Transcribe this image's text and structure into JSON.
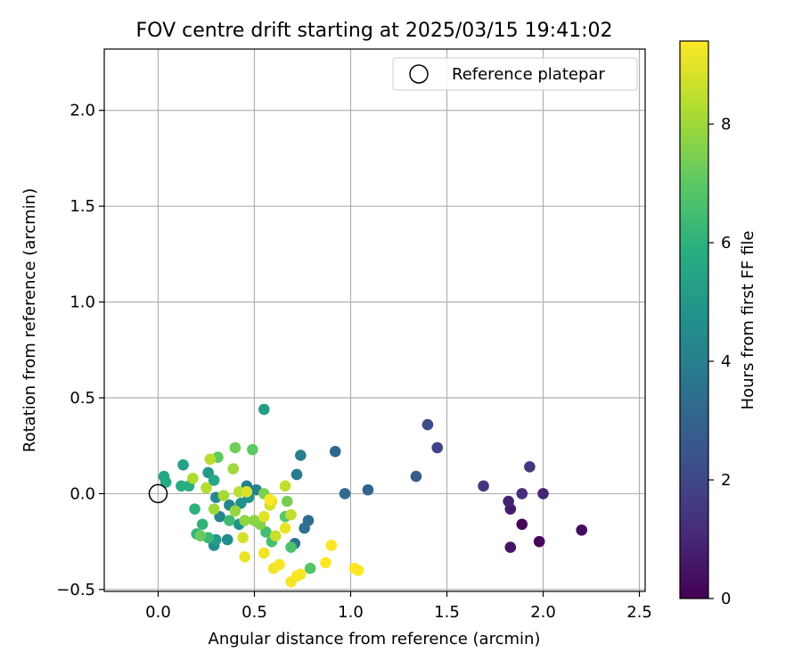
{
  "chart_data": {
    "type": "scatter",
    "title": "FOV centre drift starting at 2025/03/15 19:41:02",
    "xlabel": "Angular distance from reference (arcmin)",
    "ylabel": "Rotation from reference (arcmin)",
    "xlim": [
      -0.28,
      2.53
    ],
    "ylim": [
      -0.51,
      2.32
    ],
    "xticks": [
      0.0,
      0.5,
      1.0,
      1.5,
      2.0,
      2.5
    ],
    "xtick_labels": [
      "0.0",
      "0.5",
      "1.0",
      "1.5",
      "2.0",
      "2.5"
    ],
    "yticks": [
      -0.5,
      0.0,
      0.5,
      1.0,
      1.5,
      2.0
    ],
    "ytick_labels": [
      "−0.5",
      "0.0",
      "0.5",
      "1.0",
      "1.5",
      "2.0"
    ],
    "grid": true,
    "legend": {
      "placement": "top-right",
      "entries": [
        {
          "label": "Reference platepar",
          "marker": "open-circle"
        }
      ]
    },
    "colorbar": {
      "label": "Hours from first FF file",
      "colormap": "viridis",
      "range": [
        0,
        9.4
      ],
      "ticks": [
        0,
        2,
        4,
        6,
        8
      ],
      "tick_labels": [
        "0",
        "2",
        "4",
        "6",
        "8"
      ]
    },
    "reference_point": {
      "x": 0.0,
      "y": 0.0
    },
    "points": [
      {
        "x": 1.89,
        "y": -0.16,
        "c": 0.1
      },
      {
        "x": 1.98,
        "y": -0.25,
        "c": 0.2
      },
      {
        "x": 2.2,
        "y": -0.19,
        "c": 0.3
      },
      {
        "x": 1.83,
        "y": -0.28,
        "c": 0.5
      },
      {
        "x": 1.83,
        "y": -0.08,
        "c": 0.7
      },
      {
        "x": 1.82,
        "y": -0.04,
        "c": 0.9
      },
      {
        "x": 2.0,
        "y": 0.0,
        "c": 1.0
      },
      {
        "x": 1.89,
        "y": 0.0,
        "c": 1.2
      },
      {
        "x": 1.69,
        "y": 0.04,
        "c": 1.4
      },
      {
        "x": 1.93,
        "y": 0.14,
        "c": 1.5
      },
      {
        "x": 1.45,
        "y": 0.24,
        "c": 1.9
      },
      {
        "x": 1.4,
        "y": 0.36,
        "c": 2.2
      },
      {
        "x": 1.34,
        "y": 0.09,
        "c": 2.7
      },
      {
        "x": 1.09,
        "y": 0.02,
        "c": 3.0
      },
      {
        "x": 0.92,
        "y": 0.22,
        "c": 3.1
      },
      {
        "x": 0.97,
        "y": 0.0,
        "c": 3.3
      },
      {
        "x": 0.78,
        "y": -0.14,
        "c": 3.4
      },
      {
        "x": 0.76,
        "y": -0.18,
        "c": 3.5
      },
      {
        "x": 0.71,
        "y": -0.26,
        "c": 3.6
      },
      {
        "x": 0.72,
        "y": 0.1,
        "c": 3.8
      },
      {
        "x": 0.74,
        "y": 0.2,
        "c": 4.0
      },
      {
        "x": 0.51,
        "y": 0.02,
        "c": 4.0
      },
      {
        "x": 0.46,
        "y": 0.04,
        "c": 4.1
      },
      {
        "x": 0.37,
        "y": -0.06,
        "c": 4.2
      },
      {
        "x": 0.32,
        "y": -0.12,
        "c": 4.3
      },
      {
        "x": 0.3,
        "y": -0.02,
        "c": 4.4
      },
      {
        "x": 0.36,
        "y": -0.24,
        "c": 4.5
      },
      {
        "x": 0.29,
        "y": -0.27,
        "c": 4.6
      },
      {
        "x": 0.42,
        "y": -0.16,
        "c": 4.7
      },
      {
        "x": 0.43,
        "y": -0.05,
        "c": 4.8
      },
      {
        "x": 0.47,
        "y": -0.02,
        "c": 4.9
      },
      {
        "x": 0.26,
        "y": 0.11,
        "c": 5.0
      },
      {
        "x": 0.3,
        "y": -0.24,
        "c": 5.1
      },
      {
        "x": 0.55,
        "y": 0.44,
        "c": 5.2
      },
      {
        "x": 0.13,
        "y": 0.15,
        "c": 5.4
      },
      {
        "x": 0.03,
        "y": 0.09,
        "c": 5.5
      },
      {
        "x": 0.29,
        "y": 0.07,
        "c": 5.6
      },
      {
        "x": 0.04,
        "y": 0.06,
        "c": 5.7
      },
      {
        "x": 0.12,
        "y": 0.04,
        "c": 5.8
      },
      {
        "x": 0.16,
        "y": 0.04,
        "c": 5.9
      },
      {
        "x": 0.19,
        "y": -0.08,
        "c": 6.0
      },
      {
        "x": 0.23,
        "y": -0.16,
        "c": 6.1
      },
      {
        "x": 0.2,
        "y": -0.21,
        "c": 6.2
      },
      {
        "x": 0.26,
        "y": -0.23,
        "c": 6.3
      },
      {
        "x": 0.37,
        "y": -0.14,
        "c": 6.4
      },
      {
        "x": 0.56,
        "y": -0.2,
        "c": 6.5
      },
      {
        "x": 0.59,
        "y": -0.25,
        "c": 6.6
      },
      {
        "x": 0.69,
        "y": -0.28,
        "c": 6.7
      },
      {
        "x": 0.79,
        "y": -0.39,
        "c": 6.8
      },
      {
        "x": 0.66,
        "y": -0.12,
        "c": 6.9
      },
      {
        "x": 0.49,
        "y": 0.23,
        "c": 7.0
      },
      {
        "x": 0.31,
        "y": 0.19,
        "c": 7.1
      },
      {
        "x": 0.22,
        "y": -0.22,
        "c": 7.2
      },
      {
        "x": 0.4,
        "y": 0.24,
        "c": 7.3
      },
      {
        "x": 0.67,
        "y": -0.04,
        "c": 7.4
      },
      {
        "x": 0.55,
        "y": 0.0,
        "c": 7.5
      },
      {
        "x": 0.53,
        "y": -0.16,
        "c": 7.6
      },
      {
        "x": 0.5,
        "y": -0.14,
        "c": 7.7
      },
      {
        "x": 0.45,
        "y": -0.14,
        "c": 7.8
      },
      {
        "x": 0.4,
        "y": -0.09,
        "c": 7.9
      },
      {
        "x": 0.29,
        "y": -0.08,
        "c": 8.0
      },
      {
        "x": 0.39,
        "y": 0.13,
        "c": 8.0
      },
      {
        "x": 0.34,
        "y": -0.01,
        "c": 8.1
      },
      {
        "x": 0.18,
        "y": 0.08,
        "c": 8.2
      },
      {
        "x": 0.25,
        "y": 0.03,
        "c": 8.3
      },
      {
        "x": 0.27,
        "y": 0.18,
        "c": 8.4
      },
      {
        "x": 0.42,
        "y": 0.01,
        "c": 8.4
      },
      {
        "x": 0.66,
        "y": 0.04,
        "c": 8.5
      },
      {
        "x": 0.69,
        "y": -0.11,
        "c": 8.5
      },
      {
        "x": 0.61,
        "y": -0.22,
        "c": 8.6
      },
      {
        "x": 0.58,
        "y": -0.06,
        "c": 8.7
      },
      {
        "x": 0.44,
        "y": -0.23,
        "c": 8.8
      },
      {
        "x": 0.46,
        "y": 0.01,
        "c": 8.9
      },
      {
        "x": 0.55,
        "y": -0.12,
        "c": 9.0
      },
      {
        "x": 0.59,
        "y": -0.04,
        "c": 9.0
      },
      {
        "x": 0.66,
        "y": -0.18,
        "c": 9.1
      },
      {
        "x": 0.45,
        "y": -0.33,
        "c": 9.1
      },
      {
        "x": 0.55,
        "y": -0.31,
        "c": 9.2
      },
      {
        "x": 0.6,
        "y": -0.39,
        "c": 9.2
      },
      {
        "x": 0.63,
        "y": -0.37,
        "c": 9.3
      },
      {
        "x": 0.69,
        "y": -0.46,
        "c": 9.3
      },
      {
        "x": 0.72,
        "y": -0.43,
        "c": 9.3
      },
      {
        "x": 0.74,
        "y": -0.42,
        "c": 9.3
      },
      {
        "x": 0.87,
        "y": -0.36,
        "c": 9.4
      },
      {
        "x": 0.9,
        "y": -0.27,
        "c": 9.4
      },
      {
        "x": 1.02,
        "y": -0.39,
        "c": 9.4
      },
      {
        "x": 1.04,
        "y": -0.4,
        "c": 9.4
      },
      {
        "x": 0.58,
        "y": -0.03,
        "c": 9.4
      }
    ]
  }
}
